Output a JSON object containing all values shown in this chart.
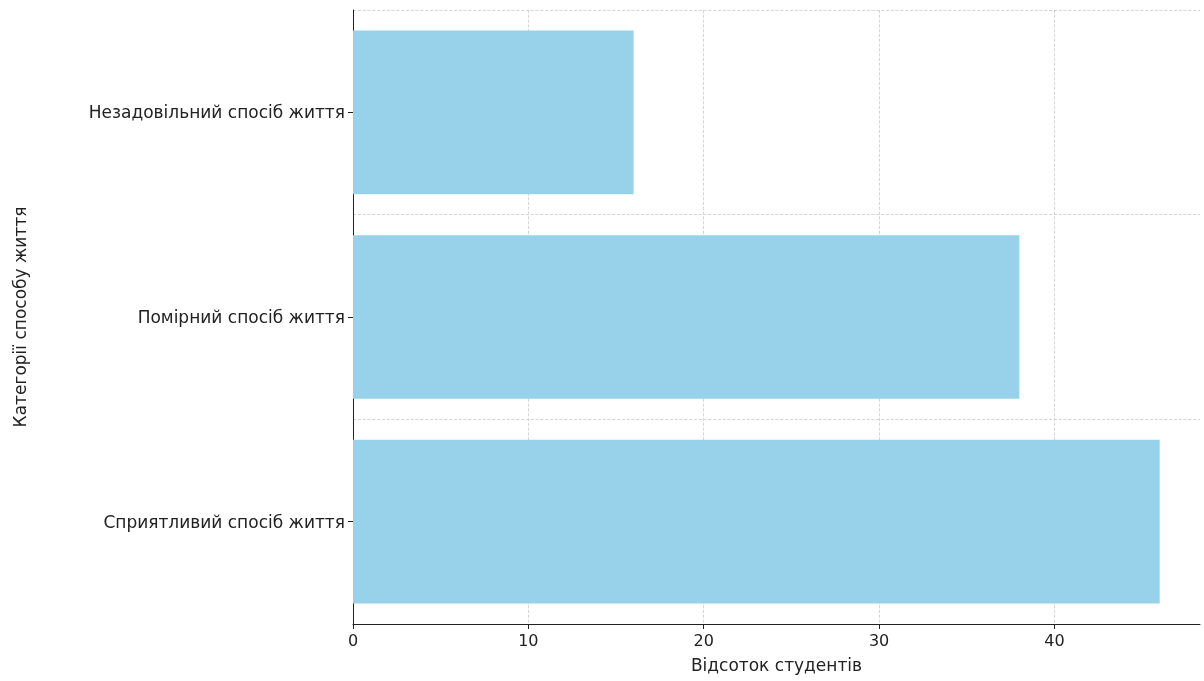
{
  "chart_data": {
    "type": "bar",
    "orientation": "horizontal",
    "xlabel": "Відсоток студентів",
    "ylabel": "Категорії способу життя",
    "categories": [
      "Незадовільний спосіб життя",
      "Помірний спосіб життя",
      "Сприятливий спосіб життя"
    ],
    "values": [
      16,
      38,
      46
    ],
    "color": "#98d1ea",
    "xlim": [
      0,
      48.3
    ],
    "xticks": [
      0,
      10,
      20,
      30,
      40
    ],
    "grid": true
  }
}
